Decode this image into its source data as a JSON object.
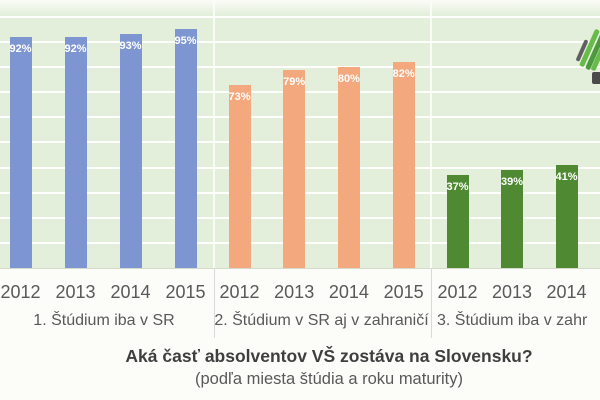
{
  "chart_data": {
    "type": "bar",
    "title": "Aká časť absolventov VŠ zostáva na Slovensku?",
    "subtitle": "(podľa miesta štúdia a roku maturity)",
    "xlabel": "",
    "ylabel": "",
    "ylim": [
      0,
      100
    ],
    "gridline_step_pct": 10,
    "grid": "horizontal white lines on light-green plot background",
    "legend_position": "none",
    "plot_background": "#e3efda",
    "axis_text_color": "#595959",
    "title_color": "#3f3f3f",
    "groups": [
      {
        "label": "1. Štúdium iba v SR",
        "color": "#7d96d2",
        "categories": [
          "2012",
          "2013",
          "2014",
          "2015"
        ],
        "values": [
          92,
          92,
          93,
          95
        ],
        "value_labels": [
          "92%",
          "92%",
          "93%",
          "95%"
        ]
      },
      {
        "label": "2. Štúdium v SR aj v zahraničí",
        "color": "#f3a97d",
        "categories": [
          "2012",
          "2013",
          "2014",
          "2015"
        ],
        "values": [
          73,
          79,
          80,
          82
        ],
        "value_labels": [
          "73%",
          "79%",
          "80%",
          "82%"
        ]
      },
      {
        "label": "3. Štúdium iba v zahr",
        "color": "#4f8a33",
        "categories": [
          "2012",
          "2013",
          "2014"
        ],
        "values": [
          37,
          39,
          41
        ],
        "value_labels": [
          "37%",
          "39%",
          "41%"
        ]
      }
    ]
  },
  "logo": {
    "name": "diagonal-hatch-logo",
    "stroke_colors": [
      "#5f5f5f",
      "#66bb4a",
      "#4c9a3d",
      "#66bb4a",
      "#4a4a4a"
    ]
  }
}
